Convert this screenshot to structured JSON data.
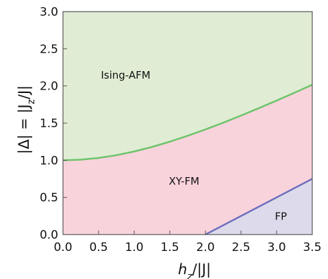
{
  "chart_data": {
    "type": "area",
    "title": "",
    "xlabel": "h_z/|J|",
    "ylabel": "|Δ| = |J_z/J|",
    "xlim": [
      0,
      3.5
    ],
    "ylim": [
      0,
      3.0
    ],
    "x_ticks": [
      "0.0",
      "0.5",
      "1.0",
      "1.5",
      "2.0",
      "2.5",
      "3.0",
      "3.5"
    ],
    "y_ticks": [
      "0.0",
      "0.5",
      "1.0",
      "1.5",
      "2.0",
      "2.5",
      "3.0"
    ],
    "grid": false,
    "boundaries": [
      {
        "between": [
          "Ising-AFM",
          "XY-FM"
        ],
        "color": "#6cc46a",
        "x": [
          0,
          0.25,
          0.5,
          0.75,
          1.0,
          1.25,
          1.5,
          1.75,
          2.0,
          2.25,
          2.5,
          2.75,
          3.0,
          3.25,
          3.5
        ],
        "y": [
          1.0,
          1.008,
          1.031,
          1.068,
          1.118,
          1.179,
          1.25,
          1.329,
          1.414,
          1.505,
          1.601,
          1.701,
          1.803,
          1.908,
          2.016
        ]
      },
      {
        "between": [
          "XY-FM",
          "FP"
        ],
        "color": "#6f70bd",
        "x": [
          2.0,
          3.5
        ],
        "y": [
          0.0,
          0.75
        ]
      }
    ],
    "regions": [
      {
        "name": "Ising-AFM",
        "color": "#e0ecd4"
      },
      {
        "name": "XY-FM",
        "color": "#f9d3dc"
      },
      {
        "name": "FP",
        "color": "#dddbeb"
      }
    ]
  }
}
